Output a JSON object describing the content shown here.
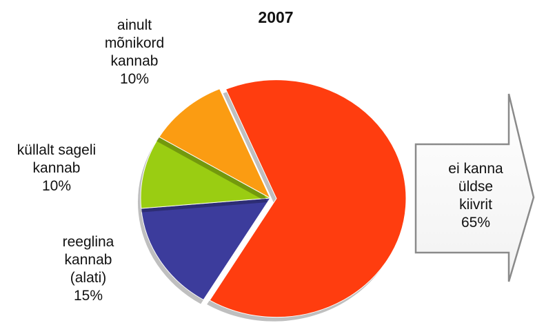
{
  "chart_data": {
    "type": "pie",
    "title": "2007",
    "categories": [
      "ei kanna\nüldse kiivrit",
      "reeglina\nkannab\n(alati)",
      "küllalt sageli\nkannab",
      "ainult\nmõnikord\nkannab"
    ],
    "values": [
      65,
      15,
      10,
      10
    ],
    "value_labels": [
      "65%",
      "15%",
      "10%",
      "10%"
    ],
    "colors": [
      "#ff3d0f",
      "#3c3c9c",
      "#9acd12",
      "#fb9c12"
    ]
  }
}
